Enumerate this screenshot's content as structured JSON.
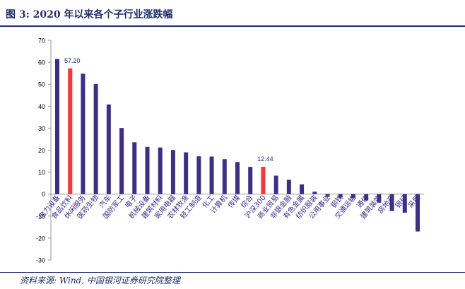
{
  "figure": {
    "title": "图 3:  2020 年以来各个子行业涨跌幅",
    "source": "资料来源:  Wind,  中国银河证券研究院整理"
  },
  "colors": {
    "bar": "#3c2f8c",
    "highlight": "#ff3333",
    "text": "#1f2d6b"
  },
  "chart_data": {
    "type": "bar",
    "categories": [
      "电力设备",
      "食品饮料",
      "休闲服务",
      "医药生物",
      "汽车",
      "国防军工",
      "电子",
      "机械设备",
      "建筑材料",
      "家用电器",
      "农林牧渔",
      "轻工制造",
      "化工",
      "计算机",
      "传媒",
      "综合",
      "沪深300",
      "商业贸易",
      "非银金融",
      "有色金属",
      "纺织服装",
      "公用事业",
      "钢铁",
      "交通运输",
      "通信",
      "建筑装饰",
      "房地产",
      "银行",
      "采掘"
    ],
    "values": [
      61.5,
      57.2,
      54.8,
      50.1,
      40.8,
      30.1,
      23.6,
      21.5,
      21.2,
      20.1,
      19.0,
      17.2,
      17.1,
      15.9,
      14.6,
      12.4,
      12.44,
      8.4,
      6.5,
      4.4,
      1.1,
      -1.2,
      -1.6,
      -1.7,
      -2.9,
      -3.9,
      -7.7,
      -8.5,
      -17.0
    ],
    "highlight": [
      1,
      16
    ],
    "data_labels": [
      {
        "index": 1,
        "text": "57.20"
      },
      {
        "index": 16,
        "text": "12.44"
      }
    ],
    "ylim": [
      -30,
      70
    ],
    "yticks": [
      70,
      60,
      50,
      40,
      30,
      20,
      10,
      0,
      -10,
      -20,
      -30
    ],
    "grid": false,
    "legend": "none"
  }
}
